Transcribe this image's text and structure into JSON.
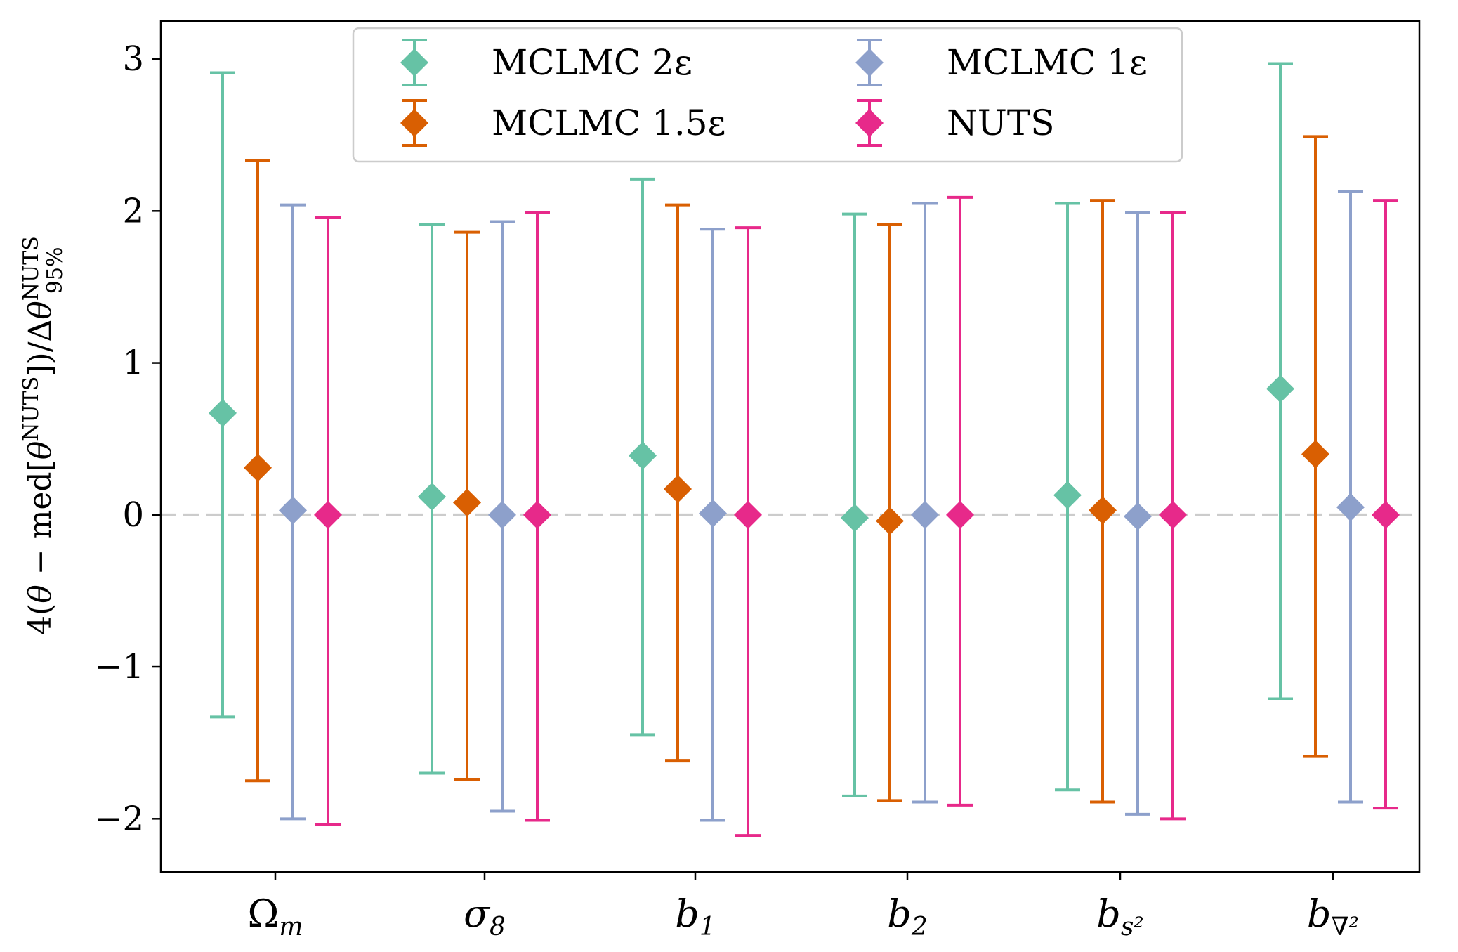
{
  "chart_data": {
    "type": "errorbar",
    "title": "",
    "xlabel": "",
    "ylabel": "4(θ − med[θ^NUTS]) / Δθ^NUTS_95%",
    "ylim": [
      -2.35,
      3.25
    ],
    "yticks": [
      {
        "value": 3,
        "label": "3"
      },
      {
        "value": 2,
        "label": "2"
      },
      {
        "value": 1,
        "label": "1"
      },
      {
        "value": 0,
        "label": "0"
      },
      {
        "value": -1,
        "label": "−1"
      },
      {
        "value": -2,
        "label": "−2"
      }
    ],
    "categories": [
      {
        "base": "Ω",
        "sub": "m"
      },
      {
        "base": "σ",
        "sub": "8"
      },
      {
        "base": "b",
        "sub": "1"
      },
      {
        "base": "b",
        "sub": "2"
      },
      {
        "base": "b",
        "sub": "s²"
      },
      {
        "base": "b",
        "sub": "∇²"
      }
    ],
    "reference_line": {
      "value": 0,
      "style": "dashed",
      "color": "#cccccc"
    },
    "legend_position": "top-center",
    "series": [
      {
        "name": "MCLMC 2ε",
        "color": "#66c2a5",
        "values": [
          0.67,
          0.12,
          0.39,
          -0.02,
          0.13,
          0.83
        ],
        "lower": [
          -1.33,
          -1.7,
          -1.45,
          -1.85,
          -1.81,
          -1.21
        ],
        "upper": [
          2.91,
          1.91,
          2.21,
          1.98,
          2.05,
          2.97
        ]
      },
      {
        "name": "MCLMC 1.5ε",
        "color": "#d95f02",
        "values": [
          0.31,
          0.08,
          0.17,
          -0.04,
          0.03,
          0.4
        ],
        "lower": [
          -1.75,
          -1.74,
          -1.62,
          -1.88,
          -1.89,
          -1.59
        ],
        "upper": [
          2.33,
          1.86,
          2.04,
          1.91,
          2.07,
          2.49
        ]
      },
      {
        "name": "MCLMC 1ε",
        "color": "#8da0cb",
        "values": [
          0.03,
          0.0,
          0.01,
          0.0,
          -0.01,
          0.05
        ],
        "lower": [
          -2.0,
          -1.95,
          -2.01,
          -1.89,
          -1.97,
          -1.89
        ],
        "upper": [
          2.04,
          1.93,
          1.88,
          2.05,
          1.99,
          2.13
        ]
      },
      {
        "name": "NUTS",
        "color": "#e7298a",
        "values": [
          0.0,
          0.0,
          0.0,
          0.0,
          0.0,
          0.0
        ],
        "lower": [
          -2.04,
          -2.01,
          -2.11,
          -1.91,
          -2.0,
          -1.93
        ],
        "upper": [
          1.96,
          1.99,
          1.89,
          2.09,
          1.99,
          2.07
        ]
      }
    ]
  }
}
